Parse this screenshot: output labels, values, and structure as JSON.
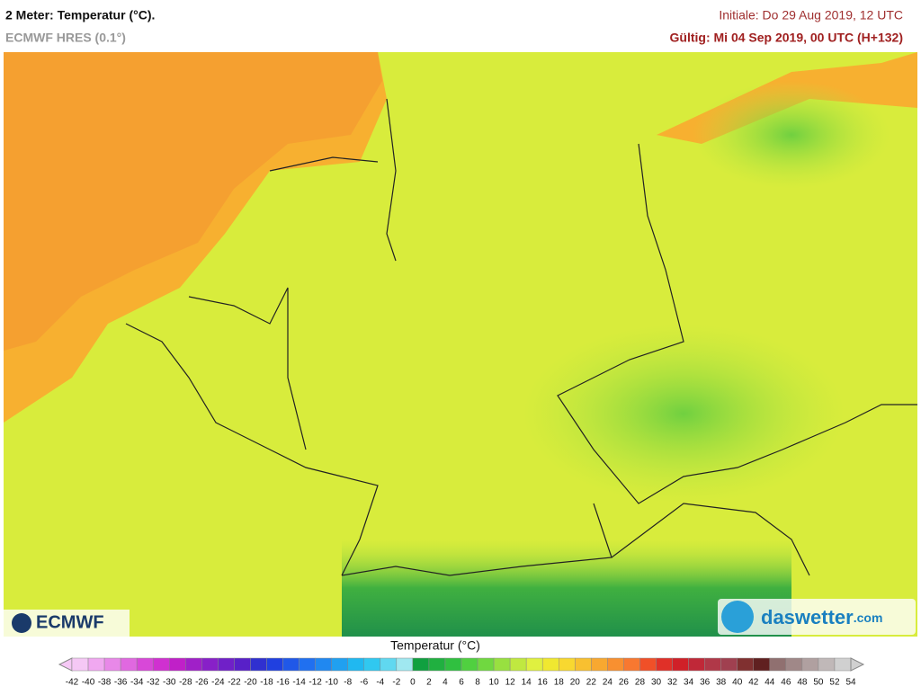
{
  "header": {
    "title": "2 Meter: Temperatur (°C).",
    "model": "ECMWF HRES (0.1°)",
    "initial": "Initiale: Do 29 Aug 2019, 12 UTC",
    "valid": "Gültig: Mi 04 Sep 2019, 00 UTC (H+132)"
  },
  "logos": {
    "left": "ECMWF",
    "right_name": "daswetter",
    "right_suffix": ".com"
  },
  "legend": {
    "title": "Temperatur (°C)",
    "labels": [
      -42,
      -40,
      -38,
      -36,
      -34,
      -32,
      -30,
      -28,
      -26,
      -24,
      -22,
      -20,
      -18,
      -16,
      -14,
      -12,
      -10,
      -8,
      -6,
      -4,
      -2,
      0,
      2,
      4,
      6,
      8,
      10,
      12,
      14,
      16,
      18,
      20,
      22,
      24,
      26,
      28,
      30,
      32,
      34,
      36,
      38,
      40,
      42,
      44,
      46,
      48,
      50,
      52,
      54
    ],
    "colors": [
      "#f5c8f5",
      "#f0a8f0",
      "#e888e8",
      "#e068e0",
      "#d848d8",
      "#d030d0",
      "#c020c8",
      "#a020c8",
      "#8820c8",
      "#7020c8",
      "#5820c8",
      "#3030d0",
      "#2040e0",
      "#2058e8",
      "#2070f0",
      "#2088f0",
      "#20a0f0",
      "#20b8f0",
      "#30c8f0",
      "#60d8f0",
      "#a0e8f0",
      "#10a040",
      "#20b040",
      "#30c040",
      "#50d040",
      "#70d840",
      "#98e040",
      "#c0e840",
      "#e0f040",
      "#f0e830",
      "#f8d830",
      "#f8c030",
      "#f8a830",
      "#f89030",
      "#f87830",
      "#f05028",
      "#e03028",
      "#d02028",
      "#c02838",
      "#b03848",
      "#a04050",
      "#803030",
      "#602020",
      "#907070",
      "#a08888",
      "#b0a0a0",
      "#c0b8b8",
      "#d0d0d0"
    ]
  }
}
